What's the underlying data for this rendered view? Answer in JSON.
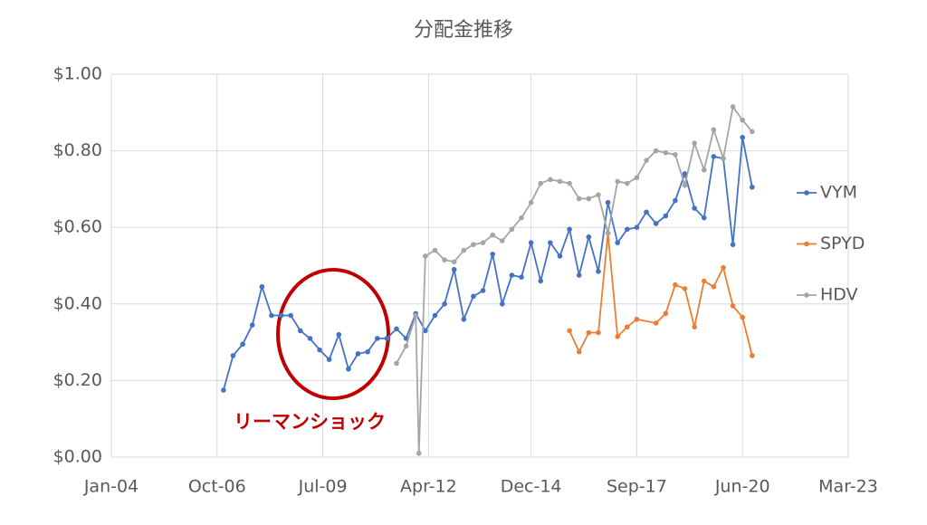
{
  "chart_data": {
    "type": "line",
    "title": "分配金推移",
    "annotation": "リーマンショック",
    "xlim": [
      "2004-01",
      "2023-03"
    ],
    "xticks": [
      {
        "value": "2004-01",
        "label": "Jan-04"
      },
      {
        "value": "2006-10",
        "label": "Oct-06"
      },
      {
        "value": "2009-07",
        "label": "Jul-09"
      },
      {
        "value": "2012-04",
        "label": "Apr-12"
      },
      {
        "value": "2014-12",
        "label": "Dec-14"
      },
      {
        "value": "2017-09",
        "label": "Sep-17"
      },
      {
        "value": "2020-06",
        "label": "Jun-20"
      },
      {
        "value": "2023-03",
        "label": "Mar-23"
      }
    ],
    "ylim": [
      0,
      1
    ],
    "yticks": [
      {
        "value": 0,
        "label": "$0.00"
      },
      {
        "value": 0.2,
        "label": "$0.20"
      },
      {
        "value": 0.4,
        "label": "$0.40"
      },
      {
        "value": 0.6,
        "label": "$0.60"
      },
      {
        "value": 0.8,
        "label": "$0.80"
      },
      {
        "value": 1,
        "label": "$1.00"
      }
    ],
    "grid": true,
    "legend": "right",
    "series": [
      {
        "name": "VYM",
        "color": "#4472c4",
        "x": [
          "2006-12",
          "2007-03",
          "2007-06",
          "2007-09",
          "2007-12",
          "2008-03",
          "2008-06",
          "2008-09",
          "2008-12",
          "2009-03",
          "2009-06",
          "2009-09",
          "2009-12",
          "2010-03",
          "2010-06",
          "2010-09",
          "2010-12",
          "2011-03",
          "2011-06",
          "2011-09",
          "2011-12",
          "2012-03",
          "2012-06",
          "2012-09",
          "2012-12",
          "2013-03",
          "2013-06",
          "2013-09",
          "2013-12",
          "2014-03",
          "2014-06",
          "2014-09",
          "2014-12",
          "2015-03",
          "2015-06",
          "2015-09",
          "2015-12",
          "2016-03",
          "2016-06",
          "2016-09",
          "2016-12",
          "2017-03",
          "2017-06",
          "2017-09",
          "2017-12",
          "2018-03",
          "2018-06",
          "2018-09",
          "2018-12",
          "2019-03",
          "2019-06",
          "2019-09",
          "2019-12",
          "2020-03",
          "2020-06",
          "2020-09"
        ],
        "values": [
          0.175,
          0.265,
          0.295,
          0.345,
          0.445,
          0.37,
          0.37,
          0.37,
          0.33,
          0.31,
          0.28,
          0.255,
          0.32,
          0.23,
          0.27,
          0.275,
          0.31,
          0.31,
          0.335,
          0.31,
          0.375,
          0.33,
          0.37,
          0.4,
          0.49,
          0.36,
          0.42,
          0.435,
          0.53,
          0.4,
          0.475,
          0.47,
          0.56,
          0.46,
          0.56,
          0.525,
          0.595,
          0.475,
          0.575,
          0.485,
          0.665,
          0.56,
          0.595,
          0.6,
          0.64,
          0.61,
          0.63,
          0.67,
          0.74,
          0.65,
          0.625,
          0.785,
          0.78,
          0.555,
          0.835,
          0.705
        ]
      },
      {
        "name": "SPYD",
        "color": "#ed7d31",
        "x": [
          "2015-12",
          "2016-03",
          "2016-06",
          "2016-09",
          "2016-12",
          "2017-03",
          "2017-06",
          "2017-09",
          "2018-03",
          "2018-06",
          "2018-09",
          "2018-12",
          "2019-03",
          "2019-06",
          "2019-09",
          "2019-12",
          "2020-03",
          "2020-06",
          "2020-09"
        ],
        "values": [
          0.33,
          0.275,
          0.325,
          0.325,
          0.585,
          0.315,
          0.34,
          0.36,
          0.35,
          0.375,
          0.45,
          0.44,
          0.34,
          0.46,
          0.445,
          0.495,
          0.395,
          0.365,
          0.265
        ]
      },
      {
        "name": "HDV",
        "color": "#a5a5a5",
        "x": [
          "2011-06",
          "2011-09",
          "2011-12",
          "2012-01",
          "2012-03",
          "2012-06",
          "2012-09",
          "2012-12",
          "2013-03",
          "2013-06",
          "2013-09",
          "2013-12",
          "2014-03",
          "2014-06",
          "2014-09",
          "2014-12",
          "2015-03",
          "2015-06",
          "2015-09",
          "2015-12",
          "2016-03",
          "2016-06",
          "2016-09",
          "2016-12",
          "2017-03",
          "2017-06",
          "2017-09",
          "2017-12",
          "2018-03",
          "2018-06",
          "2018-09",
          "2018-12",
          "2019-03",
          "2019-06",
          "2019-09",
          "2019-12",
          "2020-03",
          "2020-06",
          "2020-09"
        ],
        "values": [
          0.245,
          0.29,
          0.37,
          0.01,
          0.525,
          0.54,
          0.515,
          0.51,
          0.54,
          0.555,
          0.56,
          0.58,
          0.565,
          0.595,
          0.625,
          0.665,
          0.715,
          0.725,
          0.72,
          0.715,
          0.675,
          0.675,
          0.685,
          0.585,
          0.72,
          0.715,
          0.73,
          0.775,
          0.8,
          0.795,
          0.79,
          0.71,
          0.82,
          0.75,
          0.855,
          0.78,
          0.915,
          0.88,
          0.85
        ]
      }
    ]
  }
}
